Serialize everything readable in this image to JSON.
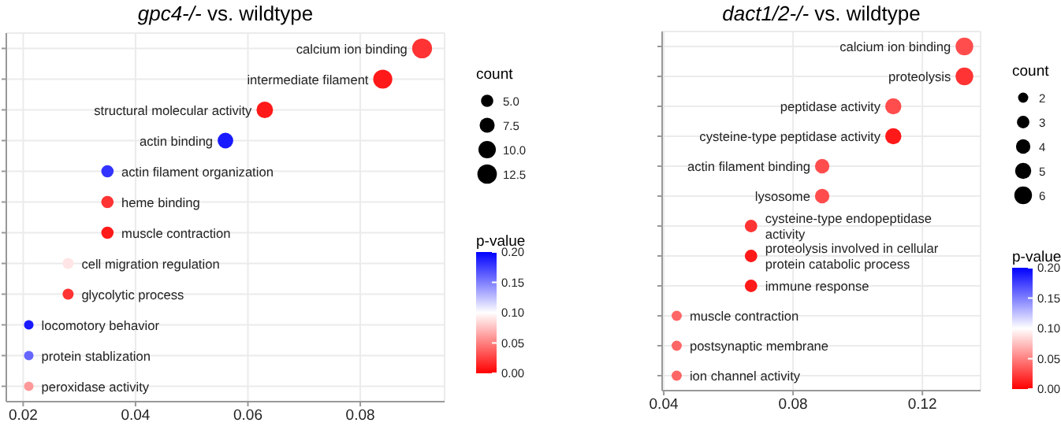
{
  "chart_data": [
    {
      "type": "bubble",
      "orientation": "horizontal",
      "title": "gpc4-/- vs. wildtype",
      "categories": [
        "calcium ion binding",
        "intermediate filament",
        "structural molecular activity",
        "actin binding",
        "actin filament organization",
        "heme binding",
        "muscle contraction",
        "cell migration regulation",
        "glycolytic process",
        "locomotory behavior",
        "protein stablization",
        "peroxidase activity"
      ],
      "values": [
        0.091,
        0.084,
        0.063,
        0.056,
        0.035,
        0.035,
        0.035,
        0.028,
        0.028,
        0.021,
        0.021,
        0.021
      ],
      "sizes": [
        13,
        12,
        9,
        8,
        5,
        5,
        5,
        4,
        4,
        3,
        3,
        3
      ],
      "cvalues": [
        0.02,
        0.01,
        0.01,
        0.19,
        0.18,
        0.02,
        0.01,
        0.09,
        0.02,
        0.19,
        0.16,
        0.06
      ],
      "xlim": [
        0.017,
        0.095
      ],
      "xticks": [
        0.02,
        0.04,
        0.06,
        0.08
      ],
      "size_legend": [
        {
          "value": 5,
          "label": "5.0"
        },
        {
          "value": 7.5,
          "label": "7.5"
        },
        {
          "value": 10,
          "label": "10.0"
        },
        {
          "value": 12.5,
          "label": "12.5"
        }
      ],
      "legend_title": "count",
      "clabel": "p-value",
      "clim": [
        0,
        0.2
      ],
      "cticks": [
        {
          "value": 0,
          "label": "0.00"
        },
        {
          "value": 0.05,
          "label": "0.05"
        },
        {
          "value": 0.1,
          "label": "0.10"
        },
        {
          "value": 0.15,
          "label": "0.15"
        },
        {
          "value": 0.2,
          "label": "0.20"
        }
      ],
      "grid": true,
      "tick_labels": "x"
    },
    {
      "type": "bubble",
      "orientation": "horizontal",
      "title": "dact1/2-/- vs. wildtype",
      "categories": [
        "calcium ion binding",
        "proteolysis",
        "peptidase activity",
        "cysteine-type peptidase activity",
        "actin filament binding",
        "lysosome",
        "cysteine-type endopeptidase activity",
        "proteolysis involved in cellular protein catabolic process",
        "immune response",
        "muscle contraction",
        "postsynaptic membrane",
        "ion channel activity"
      ],
      "values": [
        0.133,
        0.133,
        0.111,
        0.111,
        0.089,
        0.089,
        0.067,
        0.067,
        0.067,
        0.044,
        0.044,
        0.044
      ],
      "sizes": [
        6,
        6,
        5,
        5,
        4,
        4,
        3,
        3,
        3,
        2,
        2,
        2
      ],
      "cvalues": [
        0.03,
        0.02,
        0.03,
        0.01,
        0.03,
        0.03,
        0.02,
        0.01,
        0.01,
        0.04,
        0.04,
        0.04
      ],
      "xlim": [
        0.0395,
        0.138
      ],
      "xticks": [
        0.04,
        0.08,
        0.12
      ],
      "size_legend": [
        {
          "value": 2,
          "label": "2"
        },
        {
          "value": 3,
          "label": "3"
        },
        {
          "value": 4,
          "label": "4"
        },
        {
          "value": 5,
          "label": "5"
        },
        {
          "value": 6,
          "label": "6"
        }
      ],
      "legend_title": "count",
      "clabel": "p-value",
      "clim": [
        0,
        0.2
      ],
      "cticks": [
        {
          "value": 0,
          "label": "0.00"
        },
        {
          "value": 0.05,
          "label": "0.05"
        },
        {
          "value": 0.1,
          "label": "0.10"
        },
        {
          "value": 0.15,
          "label": "0.15"
        },
        {
          "value": 0.2,
          "label": "0.20"
        }
      ],
      "grid": true,
      "tick_labels": "x"
    }
  ]
}
